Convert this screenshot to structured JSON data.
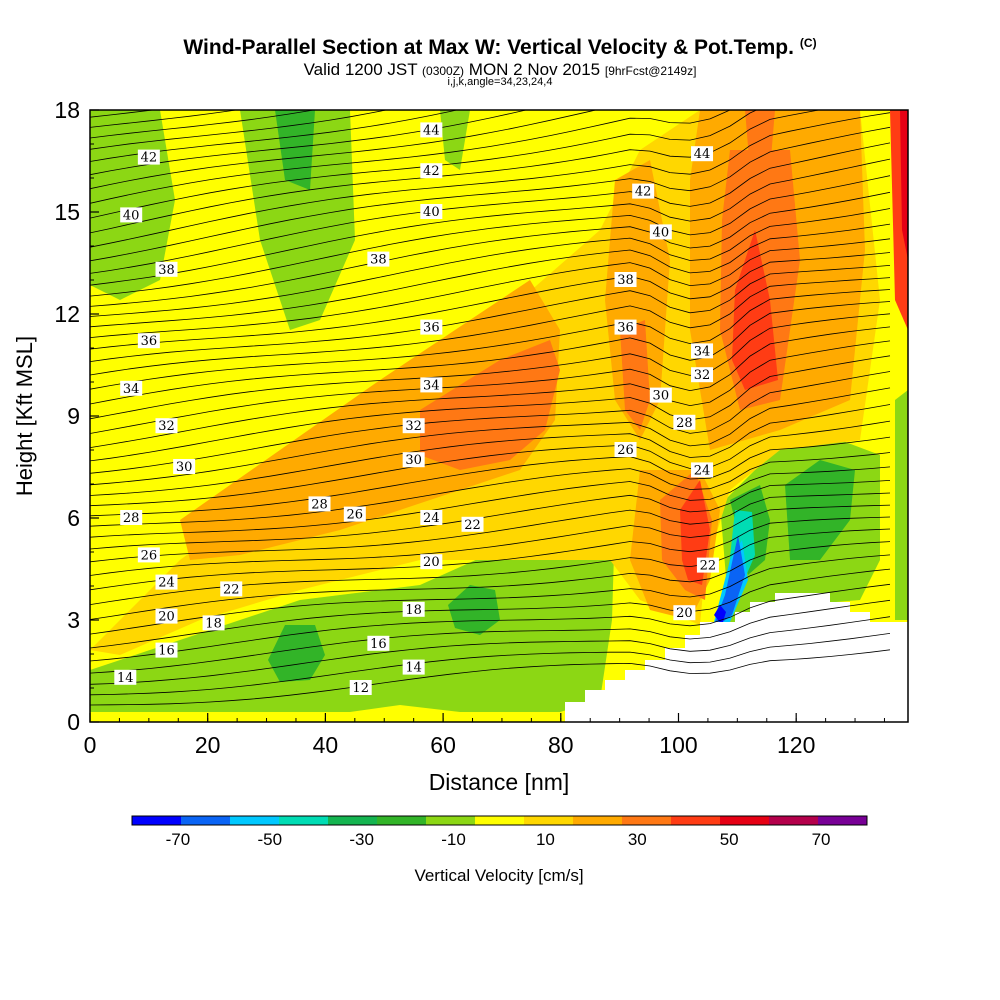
{
  "title": {
    "main": "Wind-Parallel Section at Max W: Vertical Velocity & Pot.Temp.",
    "copyright": "(C)",
    "valid_prefix": "Valid 1200 JST",
    "valid_utc": "(0300Z)",
    "valid_date": "MON 2 Nov 2015",
    "fcst": "[9hrFcst@2149z]",
    "indices": "i,j,k,angle=34,23,24,4"
  },
  "chart_data": {
    "type": "contour",
    "xlabel": "Distance [nm]",
    "ylabel": "Height [Kft MSL]",
    "xlim": [
      0,
      139
    ],
    "ylim": [
      0,
      18
    ],
    "xticks": [
      0,
      20,
      40,
      60,
      80,
      100,
      120
    ],
    "yticks": [
      0,
      3,
      6,
      9,
      12,
      15,
      18
    ],
    "colorbar": {
      "label": "Vertical Velocity [cm/s]",
      "tick_labels": [
        "-70",
        "-50",
        "-30",
        "-10",
        "10",
        "30",
        "50",
        "70"
      ],
      "tick_values": [
        -70,
        -50,
        -30,
        -10,
        10,
        30,
        50,
        70
      ],
      "bounds": [
        -80,
        80
      ],
      "colors": [
        "#0000ff",
        "#0a64f5",
        "#00c8ff",
        "#00dcb4",
        "#14b450",
        "#32b428",
        "#8cd714",
        "#ffff00",
        "#ffd700",
        "#ffaa00",
        "#ff7814",
        "#ff3c14",
        "#e60014",
        "#b4004b",
        "#780096"
      ]
    },
    "theta_labels": [
      {
        "value": "44",
        "x": 58,
        "y": 17.4
      },
      {
        "value": "44",
        "x": 104,
        "y": 16.7
      },
      {
        "value": "42",
        "x": 10,
        "y": 16.6
      },
      {
        "value": "42",
        "x": 58,
        "y": 16.2
      },
      {
        "value": "42",
        "x": 94,
        "y": 15.6
      },
      {
        "value": "40",
        "x": 7,
        "y": 14.9
      },
      {
        "value": "40",
        "x": 58,
        "y": 15.0
      },
      {
        "value": "40",
        "x": 97,
        "y": 14.4
      },
      {
        "value": "38",
        "x": 13,
        "y": 13.3
      },
      {
        "value": "38",
        "x": 49,
        "y": 13.6
      },
      {
        "value": "38",
        "x": 91,
        "y": 13.0
      },
      {
        "value": "36",
        "x": 10,
        "y": 11.2
      },
      {
        "value": "36",
        "x": 58,
        "y": 11.6
      },
      {
        "value": "36",
        "x": 91,
        "y": 11.6
      },
      {
        "value": "34",
        "x": 7,
        "y": 9.8
      },
      {
        "value": "34",
        "x": 58,
        "y": 9.9
      },
      {
        "value": "34",
        "x": 104,
        "y": 10.9
      },
      {
        "value": "32",
        "x": 13,
        "y": 8.7
      },
      {
        "value": "32",
        "x": 55,
        "y": 8.7
      },
      {
        "value": "32",
        "x": 104,
        "y": 10.2
      },
      {
        "value": "30",
        "x": 16,
        "y": 7.5
      },
      {
        "value": "30",
        "x": 55,
        "y": 7.7
      },
      {
        "value": "30",
        "x": 97,
        "y": 9.6
      },
      {
        "value": "28",
        "x": 7,
        "y": 6.0
      },
      {
        "value": "28",
        "x": 39,
        "y": 6.4
      },
      {
        "value": "28",
        "x": 101,
        "y": 8.8
      },
      {
        "value": "26",
        "x": 10,
        "y": 4.9
      },
      {
        "value": "26",
        "x": 45,
        "y": 6.1
      },
      {
        "value": "26",
        "x": 91,
        "y": 8.0
      },
      {
        "value": "24",
        "x": 13,
        "y": 4.1
      },
      {
        "value": "24",
        "x": 58,
        "y": 6.0
      },
      {
        "value": "24",
        "x": 104,
        "y": 7.4
      },
      {
        "value": "22",
        "x": 24,
        "y": 3.9
      },
      {
        "value": "22",
        "x": 65,
        "y": 5.8
      },
      {
        "value": "22",
        "x": 105,
        "y": 4.6
      },
      {
        "value": "20",
        "x": 13,
        "y": 3.1
      },
      {
        "value": "20",
        "x": 58,
        "y": 4.7
      },
      {
        "value": "20",
        "x": 101,
        "y": 3.2
      },
      {
        "value": "18",
        "x": 21,
        "y": 2.9
      },
      {
        "value": "18",
        "x": 55,
        "y": 3.3
      },
      {
        "value": "16",
        "x": 13,
        "y": 2.1
      },
      {
        "value": "16",
        "x": 49,
        "y": 2.3
      },
      {
        "value": "14",
        "x": 6,
        "y": 1.3
      },
      {
        "value": "14",
        "x": 55,
        "y": 1.6
      },
      {
        "value": "12",
        "x": 46,
        "y": 1.0
      }
    ]
  }
}
